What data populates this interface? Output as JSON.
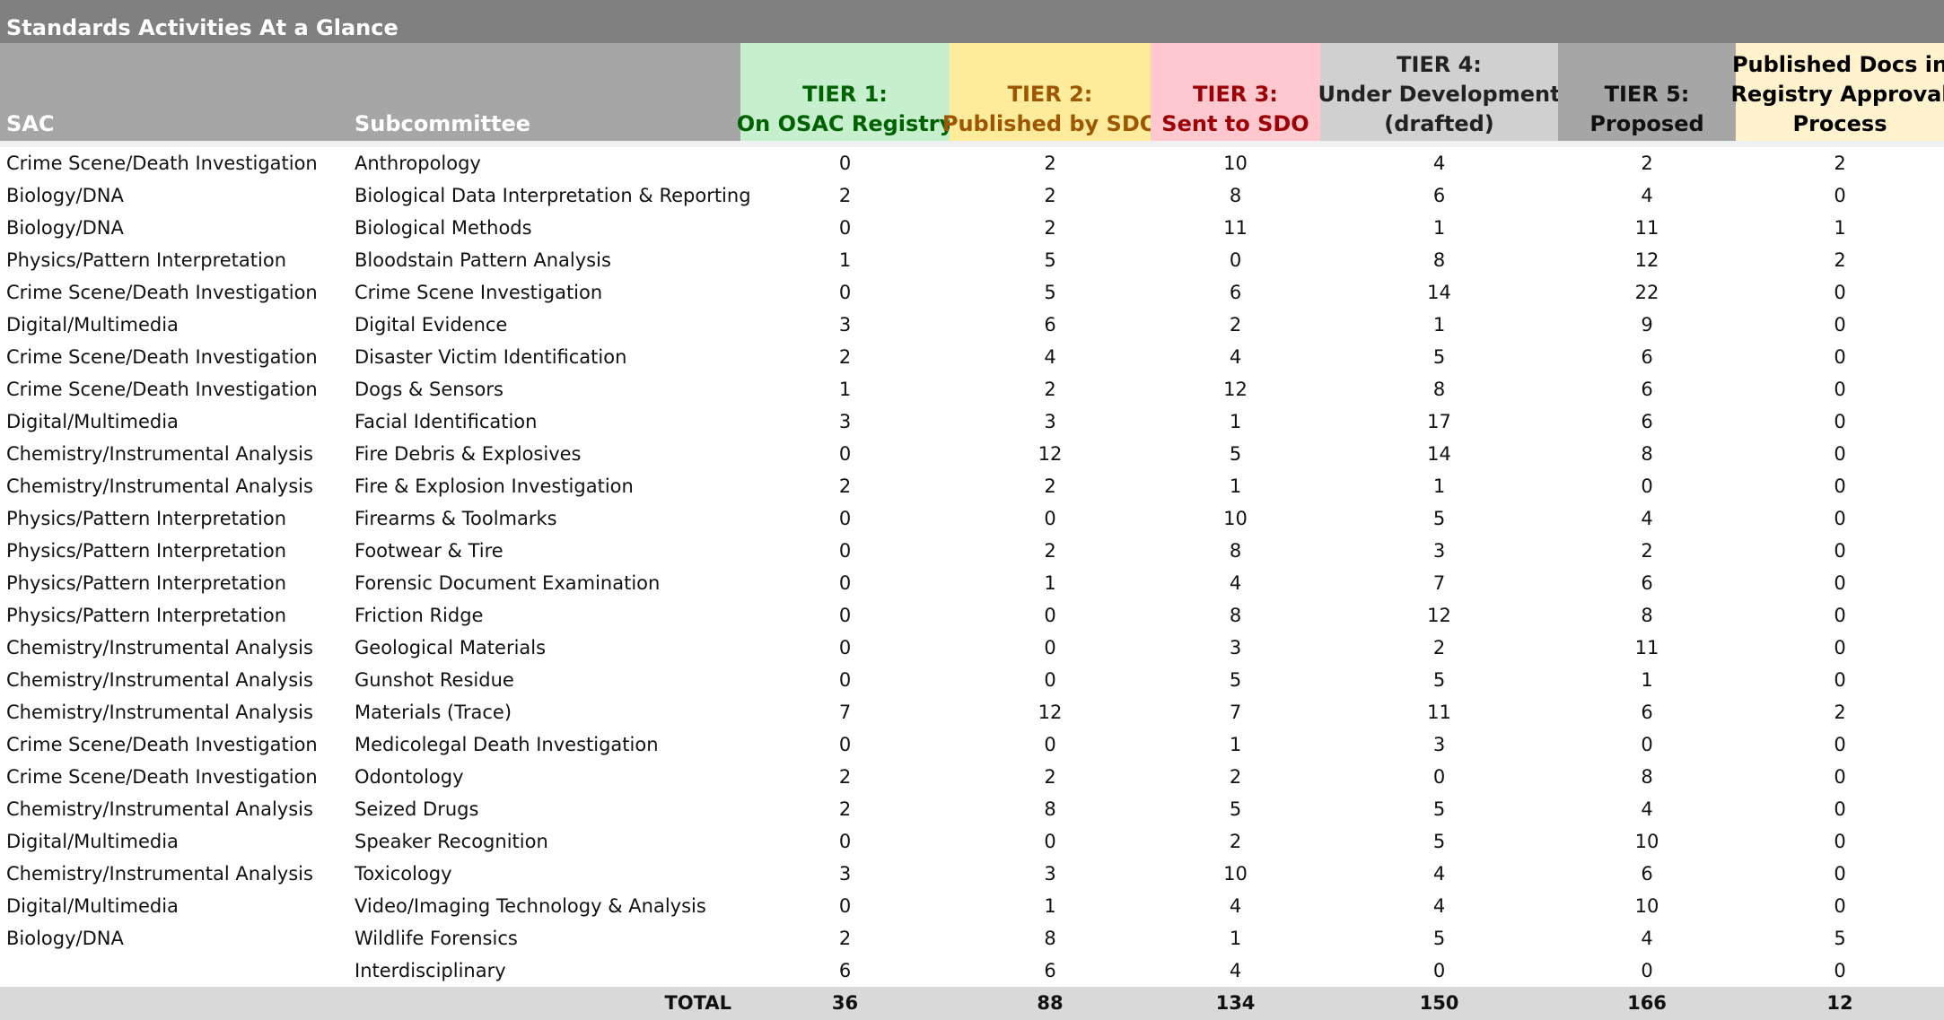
{
  "title": "Standards Activities At a Glance",
  "headers": [
    [
      "SAC"
    ],
    [
      "Subcommittee"
    ],
    [
      "TIER 1:",
      "On OSAC Registry"
    ],
    [
      "TIER 2:",
      "Published by SDO"
    ],
    [
      "TIER 3:",
      "Sent to SDO"
    ],
    [
      "TIER 4:",
      "Under Development",
      "(drafted)"
    ],
    [
      "TIER 5:",
      "Proposed"
    ],
    [
      "Published Docs in",
      "Registry Approval",
      "Process"
    ]
  ],
  "rows": [
    [
      "Crime Scene/Death Investigation",
      "Anthropology",
      0,
      2,
      10,
      4,
      2,
      2
    ],
    [
      "Biology/DNA",
      "Biological Data Interpretation & Reporting",
      2,
      2,
      8,
      6,
      4,
      0
    ],
    [
      "Biology/DNA",
      "Biological Methods",
      0,
      2,
      11,
      1,
      11,
      1
    ],
    [
      "Physics/Pattern Interpretation",
      "Bloodstain Pattern Analysis",
      1,
      5,
      0,
      8,
      12,
      2
    ],
    [
      "Crime Scene/Death Investigation",
      "Crime Scene Investigation",
      0,
      5,
      6,
      14,
      22,
      0
    ],
    [
      "Digital/Multimedia",
      "Digital Evidence",
      3,
      6,
      2,
      1,
      9,
      0
    ],
    [
      "Crime Scene/Death Investigation",
      "Disaster Victim Identification",
      2,
      4,
      4,
      5,
      6,
      0
    ],
    [
      "Crime Scene/Death Investigation",
      "Dogs & Sensors",
      1,
      2,
      12,
      8,
      6,
      0
    ],
    [
      "Digital/Multimedia",
      "Facial Identification",
      3,
      3,
      1,
      17,
      6,
      0
    ],
    [
      "Chemistry/Instrumental Analysis",
      "Fire Debris & Explosives",
      0,
      12,
      5,
      14,
      8,
      0
    ],
    [
      "Chemistry/Instrumental Analysis",
      "Fire & Explosion Investigation",
      2,
      2,
      1,
      1,
      0,
      0
    ],
    [
      "Physics/Pattern Interpretation",
      "Firearms & Toolmarks",
      0,
      0,
      10,
      5,
      4,
      0
    ],
    [
      "Physics/Pattern Interpretation",
      "Footwear & Tire",
      0,
      2,
      8,
      3,
      2,
      0
    ],
    [
      "Physics/Pattern Interpretation",
      "Forensic Document Examination",
      0,
      1,
      4,
      7,
      6,
      0
    ],
    [
      "Physics/Pattern Interpretation",
      "Friction Ridge",
      0,
      0,
      8,
      12,
      8,
      0
    ],
    [
      "Chemistry/Instrumental Analysis",
      "Geological Materials",
      0,
      0,
      3,
      2,
      11,
      0
    ],
    [
      "Chemistry/Instrumental Analysis",
      "Gunshot Residue",
      0,
      0,
      5,
      5,
      1,
      0
    ],
    [
      "Chemistry/Instrumental Analysis",
      "Materials (Trace)",
      7,
      12,
      7,
      11,
      6,
      2
    ],
    [
      "Crime Scene/Death Investigation",
      "Medicolegal Death Investigation",
      0,
      0,
      1,
      3,
      0,
      0
    ],
    [
      "Crime Scene/Death Investigation",
      "Odontology",
      2,
      2,
      2,
      0,
      8,
      0
    ],
    [
      "Chemistry/Instrumental Analysis",
      "Seized Drugs",
      2,
      8,
      5,
      5,
      4,
      0
    ],
    [
      "Digital/Multimedia",
      "Speaker Recognition",
      0,
      0,
      2,
      5,
      10,
      0
    ],
    [
      "Chemistry/Instrumental Analysis",
      "Toxicology",
      3,
      3,
      10,
      4,
      6,
      0
    ],
    [
      "Digital/Multimedia",
      "Video/Imaging Technology & Analysis",
      0,
      1,
      4,
      4,
      10,
      0
    ],
    [
      "Biology/DNA",
      "Wildlife Forensics",
      2,
      8,
      1,
      5,
      4,
      5
    ],
    [
      null,
      "Interdisciplinary",
      6,
      6,
      4,
      0,
      0,
      0
    ]
  ],
  "total": {
    "label": "TOTAL",
    "values": [
      36,
      88,
      134,
      150,
      166,
      12
    ]
  }
}
